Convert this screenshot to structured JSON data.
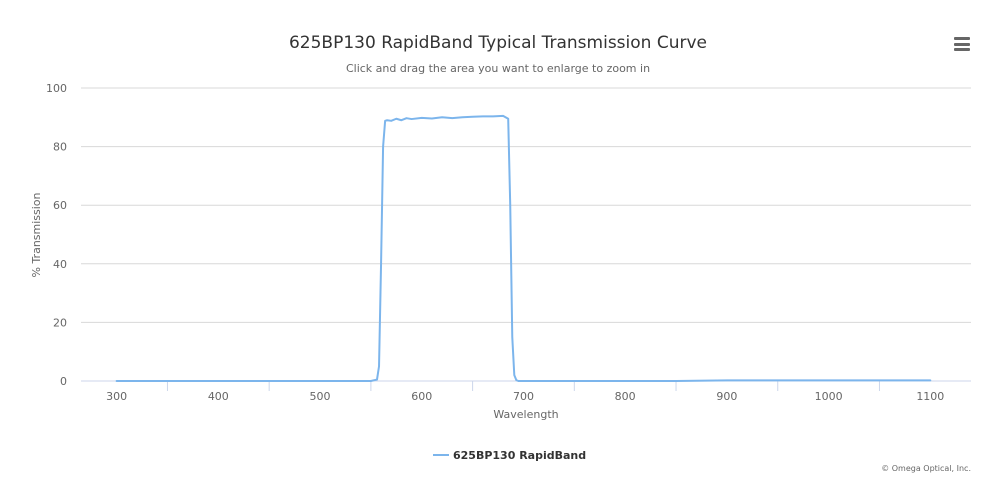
{
  "chart_data": {
    "type": "line",
    "title": "625BP130 RapidBand Typical Transmission Curve",
    "subtitle": "Click and drag the area you want to enlarge to zoom in",
    "xlabel": "Wavelength",
    "ylabel": "% Transmission",
    "xlim": [
      265,
      1140
    ],
    "ylim": [
      0,
      100
    ],
    "x_ticks": [
      300,
      400,
      500,
      600,
      700,
      800,
      900,
      1000,
      1100
    ],
    "y_ticks": [
      0,
      20,
      40,
      60,
      80,
      100
    ],
    "grid": true,
    "legend_position": "bottom-center",
    "series": [
      {
        "name": "625BP130 RapidBand",
        "color": "#7cb5ec",
        "x": [
          300,
          400,
          500,
          550,
          556,
          558,
          560,
          562,
          564,
          566,
          570,
          575,
          580,
          585,
          590,
          600,
          610,
          620,
          630,
          640,
          650,
          660,
          670,
          680,
          685,
          687,
          689,
          691,
          693,
          695,
          700,
          750,
          800,
          850,
          900,
          950,
          1000,
          1050,
          1100
        ],
        "values": [
          0,
          0,
          0,
          0,
          0.5,
          5,
          40,
          80,
          88.8,
          89,
          88.8,
          89.5,
          89,
          89.7,
          89.4,
          89.8,
          89.6,
          90,
          89.7,
          90,
          90.2,
          90.3,
          90.3,
          90.5,
          89.5,
          60,
          15,
          2,
          0.3,
          0,
          0,
          0,
          0,
          0,
          0.2,
          0.2,
          0.2,
          0.2,
          0.2
        ]
      }
    ]
  },
  "credits": "© Omega Optical, Inc.",
  "menu": {
    "icon": "hamburger-menu-icon"
  }
}
